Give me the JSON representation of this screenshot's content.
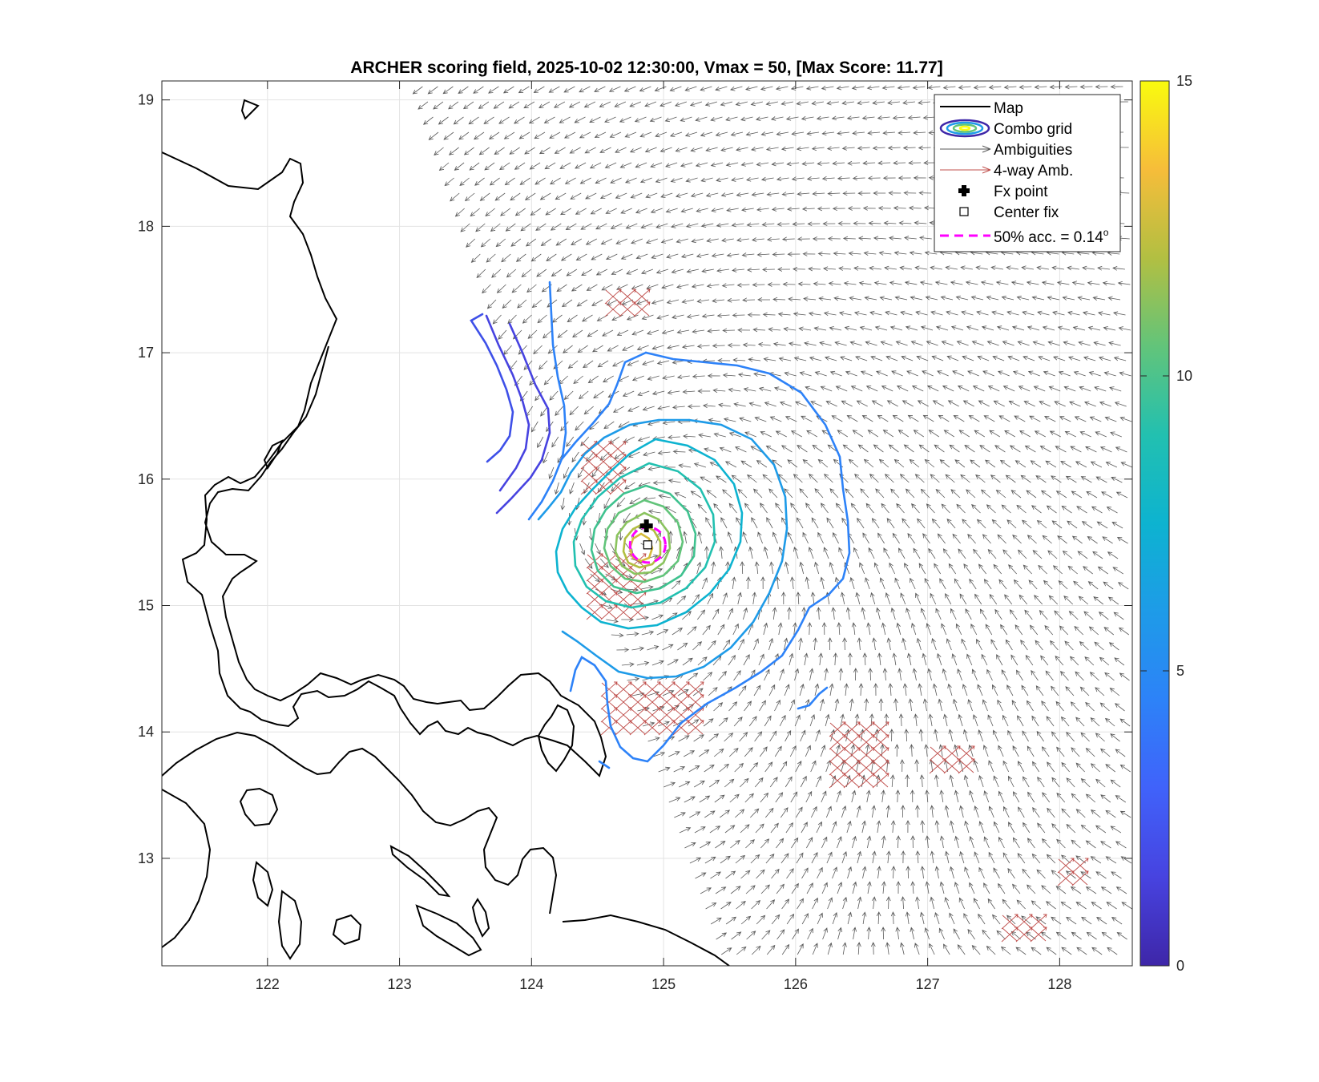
{
  "title": "ARCHER scoring field, 2025-10-02 12:30:00, Vmax = 50, [Max Score: 11.77]",
  "map": {
    "lon_range": [
      121.2,
      128.55
    ],
    "lat_range": [
      12.15,
      19.15
    ],
    "x_ticks": [
      "122",
      "123",
      "124",
      "125",
      "126",
      "127",
      "128"
    ],
    "y_ticks": [
      "13",
      "14",
      "15",
      "16",
      "17",
      "18",
      "19"
    ],
    "grid": true,
    "fx_point": {
      "lon": 124.87,
      "lat": 15.63
    },
    "center_fix": {
      "lon": 124.88,
      "lat": 15.48
    },
    "acc_circle_radius_deg": 0.14
  },
  "legend": {
    "placement": "top-right",
    "items": [
      {
        "label": "Map",
        "icon": "black-line"
      },
      {
        "label": "Combo grid",
        "icon": "contour-ellipse"
      },
      {
        "label": "Ambiguities",
        "icon": "gray-arrow"
      },
      {
        "label": "4-way Amb.",
        "icon": "red-arrow"
      },
      {
        "label": "Fx point",
        "icon": "black-plus"
      },
      {
        "label": "Center fix",
        "icon": "open-square"
      },
      {
        "label": "50% acc. = 0.14",
        "suffix": "o",
        "icon": "magenta-dash"
      }
    ]
  },
  "colorbar": {
    "ticks": [
      "0",
      "5",
      "10",
      "15"
    ],
    "range": [
      0,
      15
    ],
    "colormap": "parula"
  },
  "colors": {
    "coast": "#000000",
    "ambiguity": "#5a5a5a",
    "four_way": "#c0504d",
    "acc_circle": "#ff00ff"
  }
}
